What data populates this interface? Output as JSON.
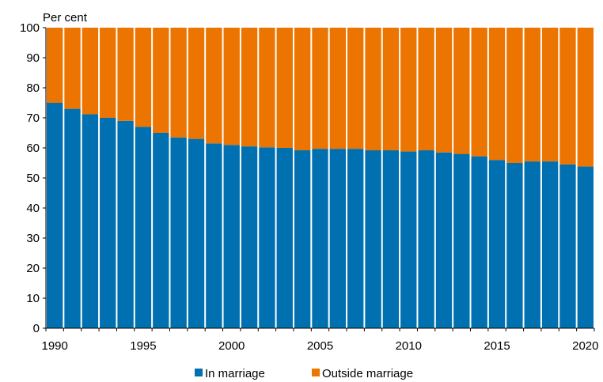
{
  "chart_data": {
    "type": "bar",
    "stacked": true,
    "ylabel": "Per cent",
    "ylim": [
      0,
      100
    ],
    "yticks": [
      0,
      10,
      20,
      30,
      40,
      50,
      60,
      70,
      80,
      90,
      100
    ],
    "xtick_labels": [
      "1990",
      "1995",
      "2000",
      "2005",
      "2010",
      "2015",
      "2020"
    ],
    "categories": [
      1990,
      1991,
      1992,
      1993,
      1994,
      1995,
      1996,
      1997,
      1998,
      1999,
      2000,
      2001,
      2002,
      2003,
      2004,
      2005,
      2006,
      2007,
      2008,
      2009,
      2010,
      2011,
      2012,
      2013,
      2014,
      2015,
      2016,
      2017,
      2018,
      2019,
      2020
    ],
    "series": [
      {
        "name": "In marriage",
        "color": "#0070b0",
        "values": [
          75,
          73,
          71.2,
          70,
          69,
          67,
          65,
          63.5,
          63,
          61.5,
          61,
          60.5,
          60.2,
          60,
          59.2,
          59.7,
          59.7,
          59.7,
          59.2,
          59.2,
          58.8,
          59.2,
          58.5,
          58,
          57.2,
          56,
          55,
          55.5,
          55.5,
          54.5,
          53.8
        ]
      },
      {
        "name": "Outside marriage",
        "color": "#ec7400",
        "values": [
          25,
          27,
          28.8,
          30,
          31,
          33,
          35,
          36.5,
          37,
          38.5,
          39,
          39.5,
          39.8,
          40,
          40.8,
          40.3,
          40.3,
          40.3,
          40.8,
          40.8,
          41.2,
          40.8,
          41.5,
          42,
          42.8,
          44,
          45,
          44.5,
          44.5,
          45.5,
          46.2
        ]
      }
    ],
    "grid": false,
    "legend_position": "bottom"
  }
}
